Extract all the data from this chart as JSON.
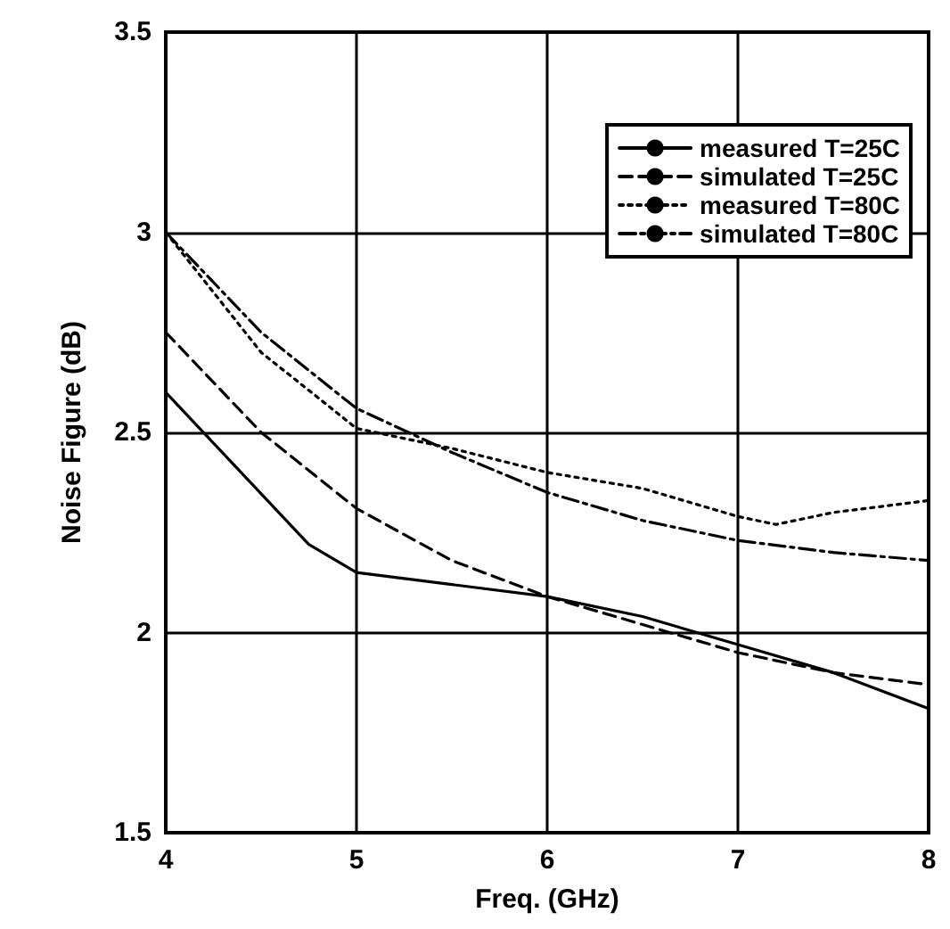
{
  "chart_data": {
    "type": "line",
    "xlabel": "Freq. (GHz)",
    "ylabel": "Noise Figure (dB)",
    "xlim": [
      4,
      8
    ],
    "xticks": [
      4,
      5,
      6,
      7,
      8
    ],
    "ylim": [
      1.5,
      3.5
    ],
    "yticks": [
      1.5,
      2,
      2.5,
      3,
      3.5
    ],
    "grid": true,
    "legend": "top right",
    "marker": "none",
    "series": [
      {
        "name": "measured T=25C",
        "color": "#000000",
        "line_style": "solid",
        "x": [
          4,
          4.75,
          5,
          5.5,
          6,
          6.5,
          7,
          7.5,
          8
        ],
        "values": [
          2.6,
          2.22,
          2.15,
          2.12,
          2.09,
          2.04,
          1.97,
          1.9,
          1.81
        ]
      },
      {
        "name": "simulated T=25C",
        "color": "#000000",
        "line_style": "dashed",
        "x": [
          4,
          4.5,
          5,
          5.5,
          6,
          6.5,
          7,
          7.5,
          8
        ],
        "values": [
          2.75,
          2.5,
          2.31,
          2.18,
          2.09,
          2.02,
          1.95,
          1.9,
          1.87
        ]
      },
      {
        "name": "measured T=80C",
        "color": "#000000",
        "line_style": "dotted",
        "x": [
          4,
          4.5,
          5,
          5.5,
          6,
          6.5,
          7,
          7.2,
          7.5,
          8
        ],
        "values": [
          3.0,
          2.7,
          2.51,
          2.46,
          2.4,
          2.36,
          2.29,
          2.27,
          2.3,
          2.33
        ]
      },
      {
        "name": "simulated T=80C",
        "color": "#000000",
        "line_style": "dashdot",
        "x": [
          4,
          4.5,
          5,
          5.5,
          6,
          6.5,
          7,
          7.5,
          8
        ],
        "values": [
          3.0,
          2.75,
          2.56,
          2.45,
          2.35,
          2.28,
          2.23,
          2.2,
          2.18
        ]
      }
    ]
  }
}
